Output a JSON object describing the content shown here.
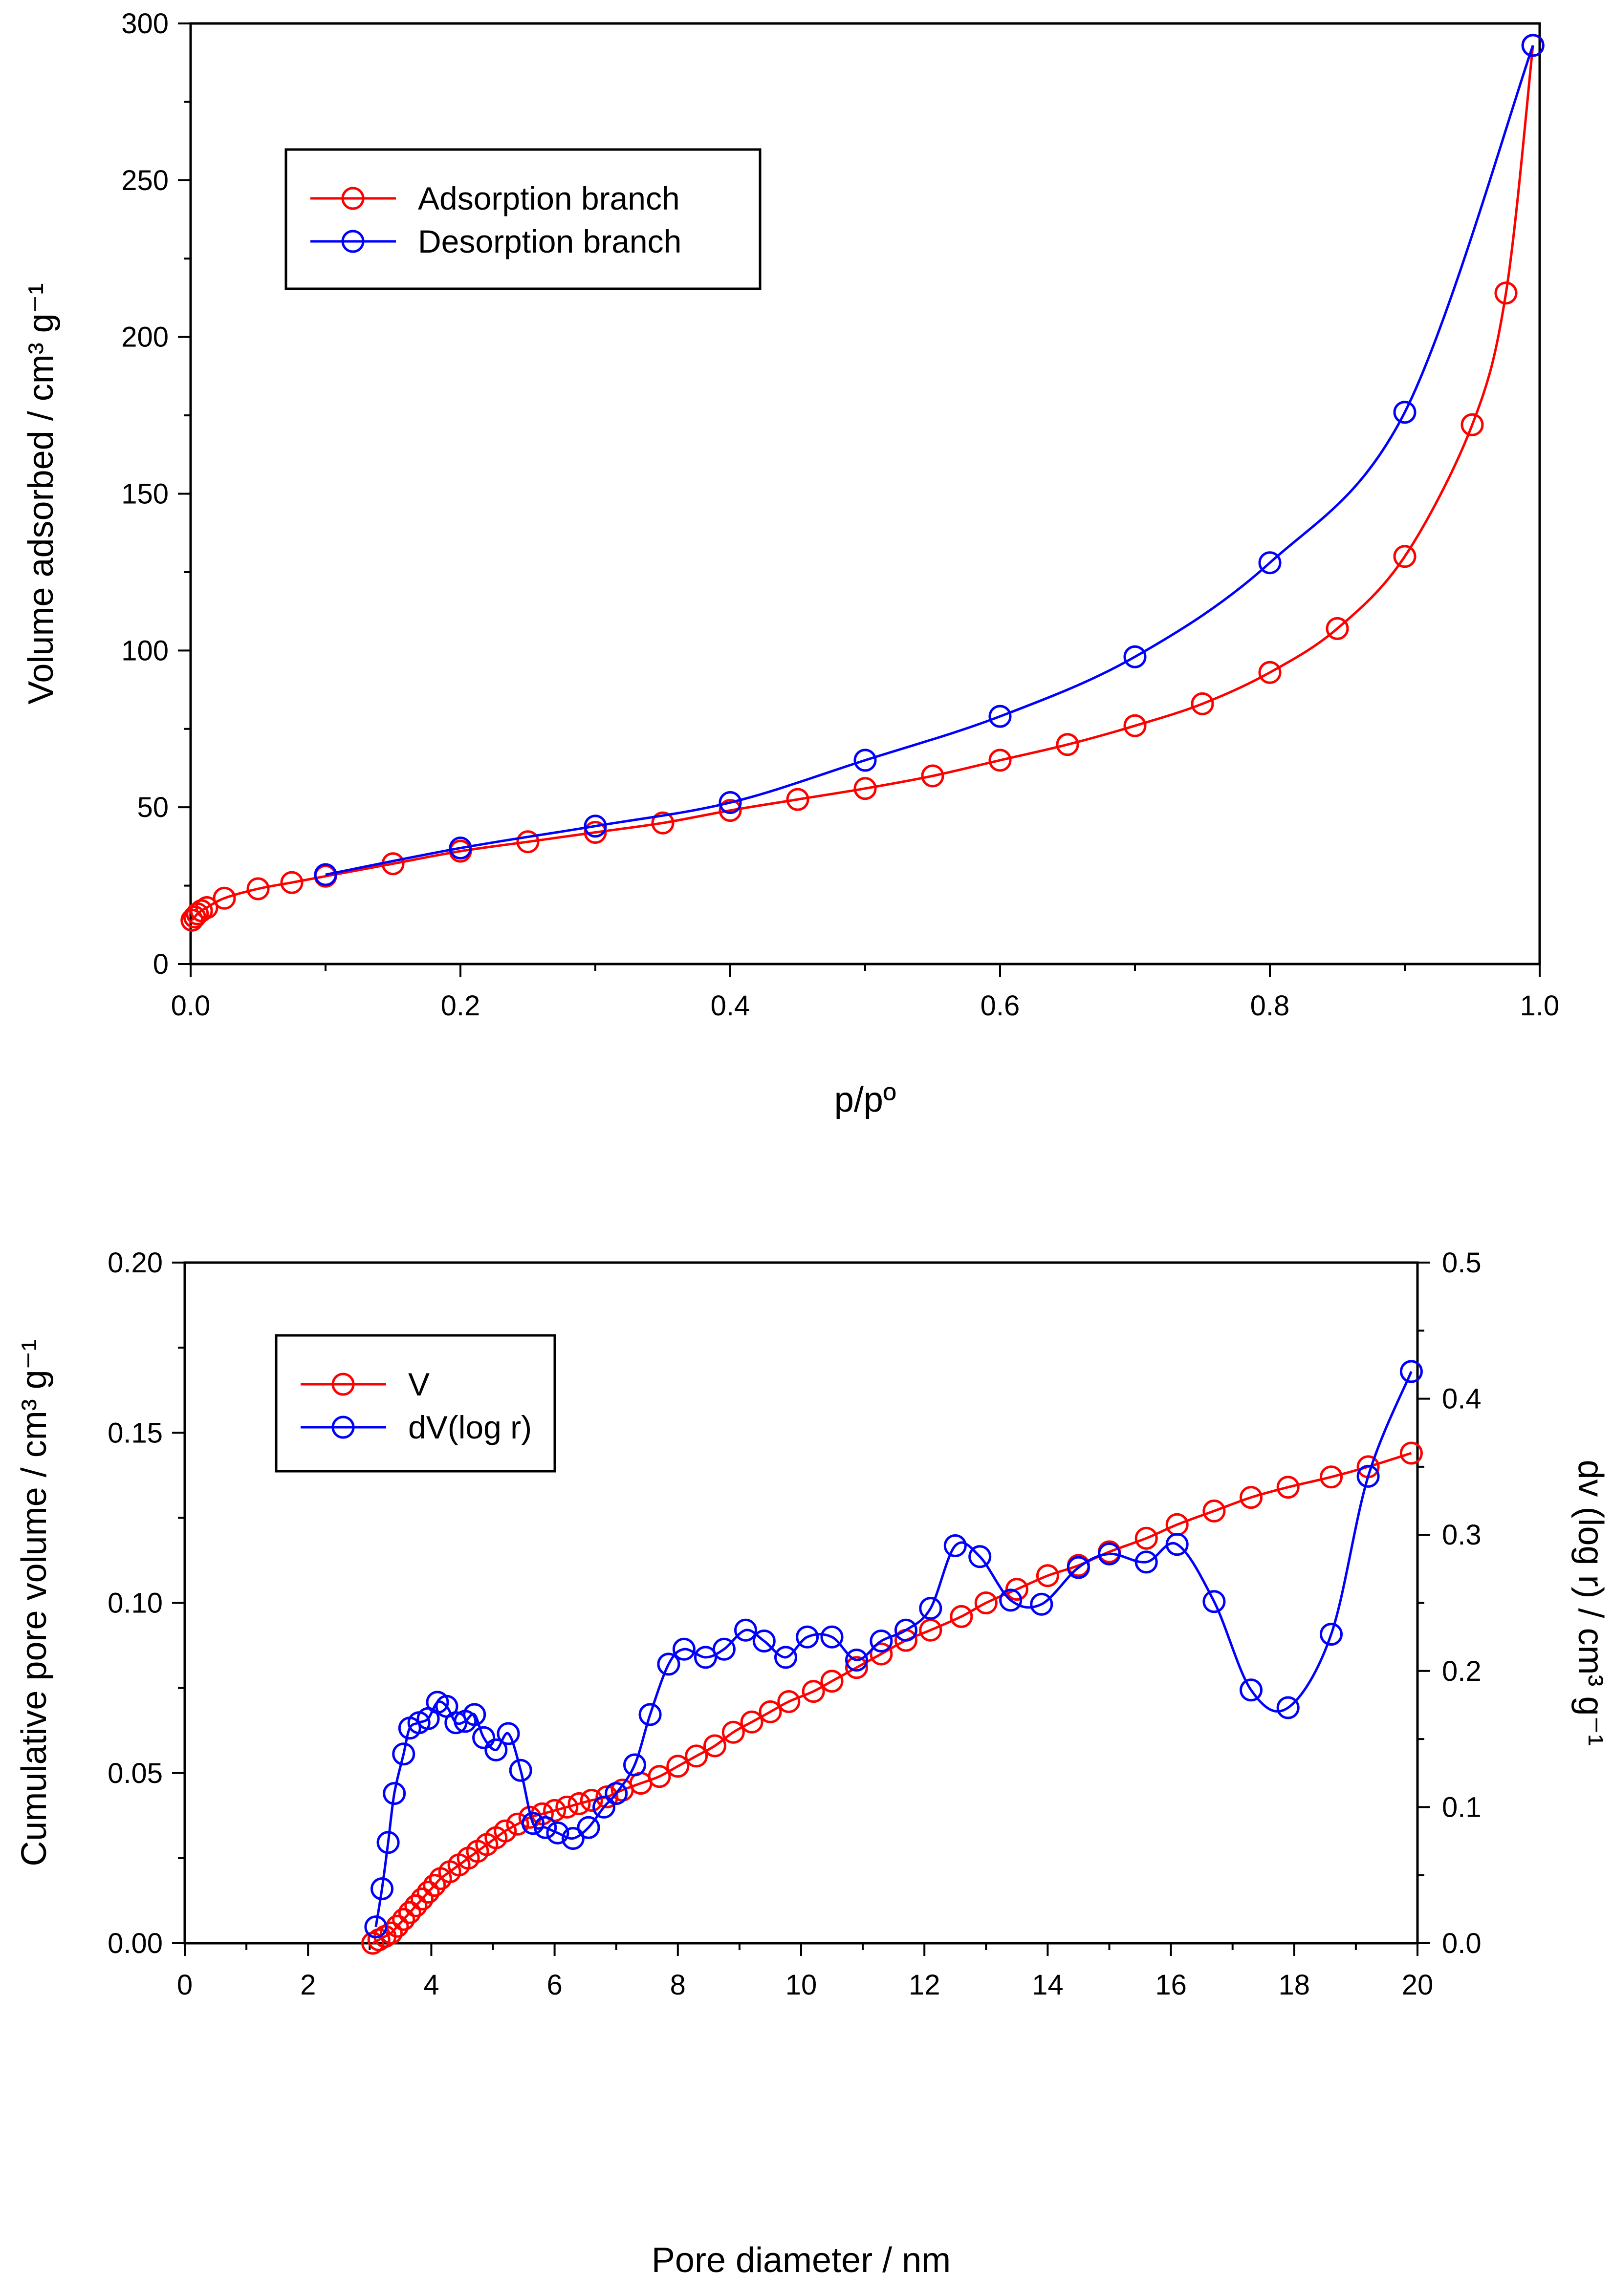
{
  "chart_data": [
    {
      "type": "line",
      "title": "",
      "xlabel": "p/pº",
      "ylabel": "Volume adsorbed / cm³ g⁻¹",
      "xlim": [
        0,
        1.0
      ],
      "ylim": [
        0,
        300
      ],
      "xticks": [
        0.0,
        0.2,
        0.4,
        0.6,
        0.8,
        1.0
      ],
      "xtick_labels": [
        "0.0",
        "0.2",
        "0.4",
        "0.6",
        "0.8",
        "1.0"
      ],
      "yticks": [
        0,
        50,
        100,
        150,
        200,
        250,
        300
      ],
      "ytick_labels": [
        "0",
        "50",
        "100",
        "150",
        "200",
        "250",
        "300"
      ],
      "grid": false,
      "legend_position": "top-left",
      "series": [
        {
          "name": "Adsorption branch",
          "color": "#ff0000",
          "marker": "open-circle",
          "x": [
            0.001,
            0.003,
            0.005,
            0.008,
            0.012,
            0.025,
            0.05,
            0.075,
            0.1,
            0.15,
            0.2,
            0.25,
            0.3,
            0.35,
            0.4,
            0.45,
            0.5,
            0.55,
            0.6,
            0.65,
            0.7,
            0.75,
            0.8,
            0.85,
            0.9,
            0.95,
            0.975,
            0.995
          ],
          "y": [
            14,
            15,
            16,
            17,
            18,
            21,
            24,
            26,
            28,
            32,
            36,
            39,
            42,
            45,
            49,
            52.5,
            56,
            60,
            65,
            70,
            76,
            83,
            93,
            107,
            130,
            172,
            214,
            293
          ]
        },
        {
          "name": "Desorption branch",
          "color": "#0000ff",
          "marker": "open-circle",
          "x": [
            0.995,
            0.9,
            0.8,
            0.7,
            0.6,
            0.5,
            0.4,
            0.3,
            0.2,
            0.1
          ],
          "y": [
            293,
            176,
            128,
            98,
            79,
            65,
            51.5,
            44,
            37,
            28.5
          ]
        }
      ]
    },
    {
      "type": "line",
      "title": "",
      "xlabel": "Pore diameter / nm",
      "ylabel": "Cumulative pore volume / cm³ g⁻¹",
      "y2label": "dv (log r) / cm³ g⁻¹",
      "xlim": [
        0,
        20
      ],
      "ylim": [
        0,
        0.2
      ],
      "y2lim": [
        0,
        0.5
      ],
      "xticks": [
        0,
        2,
        4,
        6,
        8,
        10,
        12,
        14,
        16,
        18,
        20
      ],
      "xtick_labels": [
        "0",
        "2",
        "4",
        "6",
        "8",
        "10",
        "12",
        "14",
        "16",
        "18",
        "20"
      ],
      "yticks": [
        0,
        0.05,
        0.1,
        0.15,
        0.2
      ],
      "ytick_labels": [
        "0.00",
        "0.05",
        "0.10",
        "0.15",
        "0.20"
      ],
      "y2ticks": [
        0,
        0.1,
        0.2,
        0.3,
        0.4,
        0.5
      ],
      "y2tick_labels": [
        "0.0",
        "0.1",
        "0.2",
        "0.3",
        "0.4",
        "0.5"
      ],
      "grid": false,
      "legend_position": "top-left",
      "series": [
        {
          "name": "V",
          "axis": "left",
          "color": "#ff0000",
          "marker": "open-circle",
          "x": [
            3.05,
            3.15,
            3.25,
            3.35,
            3.45,
            3.55,
            3.65,
            3.75,
            3.85,
            3.95,
            4.05,
            4.15,
            4.3,
            4.45,
            4.6,
            4.75,
            4.9,
            5.05,
            5.2,
            5.4,
            5.6,
            5.8,
            6.0,
            6.2,
            6.4,
            6.6,
            6.85,
            7.1,
            7.4,
            7.7,
            8.0,
            8.3,
            8.6,
            8.9,
            9.2,
            9.5,
            9.8,
            10.2,
            10.5,
            10.9,
            11.3,
            11.7,
            12.1,
            12.6,
            13.0,
            13.5,
            14.0,
            14.5,
            15.0,
            15.6,
            16.1,
            16.7,
            17.3,
            17.9,
            18.6,
            19.2,
            19.9
          ],
          "y": [
            0.0,
            0.001,
            0.002,
            0.003,
            0.005,
            0.007,
            0.009,
            0.011,
            0.013,
            0.015,
            0.017,
            0.019,
            0.021,
            0.023,
            0.025,
            0.027,
            0.029,
            0.031,
            0.033,
            0.035,
            0.037,
            0.038,
            0.039,
            0.04,
            0.041,
            0.042,
            0.043,
            0.045,
            0.047,
            0.049,
            0.052,
            0.055,
            0.058,
            0.062,
            0.065,
            0.068,
            0.071,
            0.074,
            0.077,
            0.081,
            0.085,
            0.089,
            0.092,
            0.096,
            0.1,
            0.104,
            0.108,
            0.111,
            0.115,
            0.119,
            0.123,
            0.127,
            0.131,
            0.134,
            0.137,
            0.14,
            0.144
          ]
        },
        {
          "name": "dV(log r)",
          "axis": "right",
          "color": "#0000ff",
          "marker": "open-circle",
          "x": [
            3.1,
            3.2,
            3.3,
            3.4,
            3.55,
            3.65,
            3.8,
            3.95,
            4.1,
            4.25,
            4.4,
            4.55,
            4.7,
            4.85,
            5.05,
            5.25,
            5.45,
            5.65,
            5.85,
            6.05,
            6.3,
            6.55,
            6.8,
            7.0,
            7.3,
            7.55,
            7.85,
            8.1,
            8.45,
            8.75,
            9.1,
            9.4,
            9.75,
            10.1,
            10.5,
            10.9,
            11.3,
            11.7,
            12.1,
            12.5,
            12.9,
            13.4,
            13.9,
            14.5,
            15.0,
            15.6,
            16.1,
            16.7,
            17.3,
            17.9,
            18.6,
            19.2,
            19.9
          ],
          "y": [
            0.012,
            0.04,
            0.074,
            0.11,
            0.139,
            0.158,
            0.162,
            0.165,
            0.177,
            0.174,
            0.162,
            0.163,
            0.168,
            0.151,
            0.142,
            0.154,
            0.127,
            0.088,
            0.085,
            0.081,
            0.077,
            0.085,
            0.1,
            0.11,
            0.131,
            0.168,
            0.205,
            0.216,
            0.21,
            0.216,
            0.23,
            0.222,
            0.21,
            0.225,
            0.225,
            0.208,
            0.222,
            0.23,
            0.246,
            0.292,
            0.284,
            0.252,
            0.249,
            0.276,
            0.286,
            0.28,
            0.293,
            0.251,
            0.186,
            0.173,
            0.227,
            0.343,
            0.42
          ]
        }
      ]
    }
  ]
}
